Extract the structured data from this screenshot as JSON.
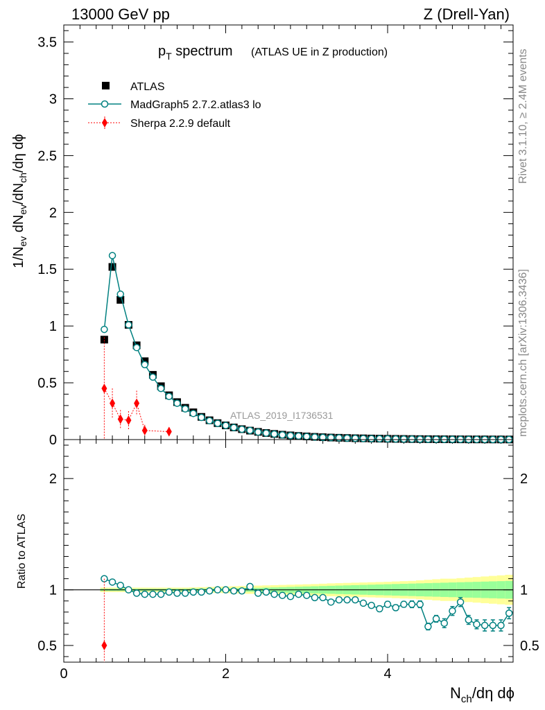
{
  "header": {
    "left": "13000 GeV pp",
    "right": "Z (Drell-Yan)"
  },
  "title": {
    "main": "p",
    "main_sub": "T",
    "main_rest": " spectrum",
    "paren": "(ATLAS UE in Z production)"
  },
  "side": {
    "rivet": "Rivet 3.1.10, ≥ 2.4M events",
    "mcplots": "mcplots.cern.ch [arXiv:1306.3436]"
  },
  "watermark": "ATLAS_2019_I1736531",
  "axes": {
    "ylabel_top": "1/N_ev dN_ev/dN_ch/dη dϕ",
    "ylabel_top_parts": [
      "1/N",
      "ev",
      " dN",
      "ev",
      "/dN",
      "ch",
      "/dη dϕ"
    ],
    "ylabel_bottom": "Ratio to ATLAS",
    "xlabel_parts": [
      "N",
      "ch",
      "/dη dϕ"
    ],
    "top_ticks": [
      "0",
      "0.5",
      "1",
      "1.5",
      "2",
      "2.5",
      "3",
      "3.5"
    ],
    "bottom_ticks": [
      "0.5",
      "1",
      "2"
    ],
    "x_ticks": [
      "0",
      "2",
      "4"
    ]
  },
  "legend": [
    {
      "label": "ATLAS",
      "color": "#000000",
      "marker": "square"
    },
    {
      "label": "MadGraph5 2.7.2.atlas3 lo",
      "color": "#008080",
      "marker": "open-circle"
    },
    {
      "label": "Sherpa 2.2.9 default",
      "color": "#ff0000",
      "marker": "diamond"
    }
  ],
  "chart_data": {
    "type": "scatter",
    "x_range": [
      0,
      5.55
    ],
    "main": {
      "ylim": [
        0,
        3.65
      ],
      "series": [
        {
          "name": "ATLAS",
          "x": [
            0.5,
            0.6,
            0.7,
            0.8,
            0.9,
            1.0,
            1.1,
            1.2,
            1.3,
            1.4,
            1.5,
            1.6,
            1.7,
            1.8,
            1.9,
            2.0,
            2.1,
            2.2,
            2.3,
            2.4,
            2.5,
            2.6,
            2.7,
            2.8,
            2.9,
            3.0,
            3.1,
            3.2,
            3.3,
            3.4,
            3.5,
            3.6,
            3.7,
            3.8,
            3.9,
            4.0,
            4.1,
            4.2,
            4.3,
            4.4,
            4.5,
            4.6,
            4.7,
            4.8,
            4.9,
            5.0,
            5.1,
            5.2,
            5.3,
            5.4,
            5.5
          ],
          "y": [
            0.88,
            1.52,
            1.23,
            1.01,
            0.83,
            0.69,
            0.57,
            0.47,
            0.39,
            0.33,
            0.28,
            0.24,
            0.2,
            0.17,
            0.145,
            0.125,
            0.107,
            0.092,
            0.079,
            0.068,
            0.058,
            0.05,
            0.043,
            0.037,
            0.032,
            0.028,
            0.024,
            0.021,
            0.018,
            0.016,
            0.014,
            0.012,
            0.011,
            0.0095,
            0.0083,
            0.0072,
            0.0063,
            0.0055,
            0.0048,
            0.0042,
            0.0037,
            0.0032,
            0.0028,
            0.0025,
            0.0022,
            0.0019,
            0.0017,
            0.0015,
            0.0013,
            0.0012,
            0.001
          ]
        },
        {
          "name": "MadGraph5 2.7.2.atlas3 lo",
          "x": [
            0.5,
            0.6,
            0.7,
            0.8,
            0.9,
            1.0,
            1.1,
            1.2,
            1.3,
            1.4,
            1.5,
            1.6,
            1.7,
            1.8,
            1.9,
            2.0,
            2.1,
            2.2,
            2.3,
            2.4,
            2.5,
            2.6,
            2.7,
            2.8,
            2.9,
            3.0,
            3.1,
            3.2,
            3.3,
            3.4,
            3.5,
            3.6,
            3.7,
            3.8,
            3.9,
            4.0,
            4.1,
            4.2,
            4.3,
            4.4,
            4.5,
            4.6,
            4.7,
            4.8,
            4.9,
            5.0,
            5.1,
            5.2,
            5.3,
            5.4,
            5.5
          ],
          "y": [
            0.97,
            1.62,
            1.28,
            1.01,
            0.81,
            0.66,
            0.55,
            0.45,
            0.38,
            0.32,
            0.27,
            0.23,
            0.195,
            0.166,
            0.143,
            0.124,
            0.106,
            0.091,
            0.08,
            0.066,
            0.057,
            0.049,
            0.041,
            0.035,
            0.031,
            0.027,
            0.022,
            0.019,
            0.017,
            0.015,
            0.013,
            0.011,
            0.0095,
            0.0083,
            0.0074,
            0.0065,
            0.0056,
            0.0049,
            0.0043,
            0.0037,
            0.0029,
            0.0026,
            0.0022,
            0.0021,
            0.002,
            0.0014,
            0.0012,
            0.0011,
            0.0009,
            0.0008,
            0.0008
          ]
        },
        {
          "name": "Sherpa 2.2.9 default",
          "x": [
            0.5,
            0.6,
            0.7,
            0.8,
            0.9,
            1.0,
            1.3
          ],
          "y": [
            0.45,
            0.32,
            0.18,
            0.17,
            0.32,
            0.08,
            0.07
          ],
          "err": [
            0.45,
            0.13,
            0.08,
            0.08,
            0.11,
            0.05,
            0.04
          ]
        }
      ]
    },
    "ratio": {
      "ylim": [
        0.35,
        2.35
      ],
      "reference": 1,
      "series": [
        {
          "name": "MadGraph5 2.7.2.atlas3 lo",
          "x": [
            0.5,
            0.6,
            0.7,
            0.8,
            0.9,
            1.0,
            1.1,
            1.2,
            1.3,
            1.4,
            1.5,
            1.6,
            1.7,
            1.8,
            1.9,
            2.0,
            2.1,
            2.2,
            2.3,
            2.4,
            2.5,
            2.6,
            2.7,
            2.8,
            2.9,
            3.0,
            3.1,
            3.2,
            3.3,
            3.4,
            3.5,
            3.6,
            3.7,
            3.8,
            3.9,
            4.0,
            4.1,
            4.2,
            4.3,
            4.4,
            4.5,
            4.6,
            4.7,
            4.8,
            4.9,
            5.0,
            5.1,
            5.2,
            5.3,
            5.4,
            5.5
          ],
          "y": [
            1.1,
            1.07,
            1.04,
            1.0,
            0.97,
            0.96,
            0.96,
            0.96,
            0.98,
            0.97,
            0.97,
            0.98,
            0.98,
            0.99,
            1.0,
            1.0,
            0.99,
            0.99,
            1.03,
            0.97,
            0.98,
            0.96,
            0.95,
            0.94,
            0.96,
            0.95,
            0.93,
            0.93,
            0.89,
            0.91,
            0.91,
            0.91,
            0.88,
            0.86,
            0.83,
            0.87,
            0.84,
            0.87,
            0.87,
            0.87,
            0.67,
            0.74,
            0.7,
            0.81,
            0.89,
            0.73,
            0.69,
            0.68,
            0.68,
            0.68,
            0.79
          ],
          "err": [
            0.01,
            0.01,
            0.01,
            0.01,
            0.01,
            0.01,
            0.01,
            0.01,
            0.01,
            0.01,
            0.01,
            0.01,
            0.01,
            0.01,
            0.01,
            0.01,
            0.01,
            0.01,
            0.01,
            0.01,
            0.01,
            0.01,
            0.01,
            0.01,
            0.01,
            0.01,
            0.01,
            0.01,
            0.01,
            0.01,
            0.015,
            0.015,
            0.02,
            0.02,
            0.025,
            0.025,
            0.025,
            0.025,
            0.03,
            0.03,
            0.03,
            0.03,
            0.04,
            0.04,
            0.04,
            0.04,
            0.04,
            0.05,
            0.05,
            0.05,
            0.05
          ]
        },
        {
          "name": "Sherpa 2.2.9 default",
          "x": [
            0.5
          ],
          "y": [
            0.5
          ],
          "err": [
            0.5
          ]
        }
      ],
      "band_inner": [
        0.01,
        0.01,
        0.01,
        0.01,
        0.01,
        0.01,
        0.01,
        0.01,
        0.01,
        0.01,
        0.01,
        0.012,
        0.012,
        0.012,
        0.013,
        0.014,
        0.015,
        0.016,
        0.017,
        0.018,
        0.02,
        0.022,
        0.024,
        0.026,
        0.028,
        0.03,
        0.032,
        0.034,
        0.036,
        0.038,
        0.04,
        0.042,
        0.044,
        0.046,
        0.048,
        0.05,
        0.052,
        0.054,
        0.056,
        0.058,
        0.06,
        0.062,
        0.064,
        0.066,
        0.068,
        0.07,
        0.072,
        0.074,
        0.076,
        0.078,
        0.08
      ],
      "band_outer": [
        0.02,
        0.02,
        0.02,
        0.02,
        0.02,
        0.02,
        0.02,
        0.02,
        0.02,
        0.02,
        0.02,
        0.022,
        0.024,
        0.026,
        0.028,
        0.03,
        0.032,
        0.034,
        0.036,
        0.038,
        0.04,
        0.042,
        0.044,
        0.046,
        0.048,
        0.05,
        0.052,
        0.055,
        0.058,
        0.06,
        0.062,
        0.064,
        0.066,
        0.068,
        0.07,
        0.072,
        0.075,
        0.078,
        0.08,
        0.085,
        0.09,
        0.095,
        0.1,
        0.1,
        0.105,
        0.11,
        0.115,
        0.12,
        0.125,
        0.13,
        0.135
      ]
    }
  }
}
